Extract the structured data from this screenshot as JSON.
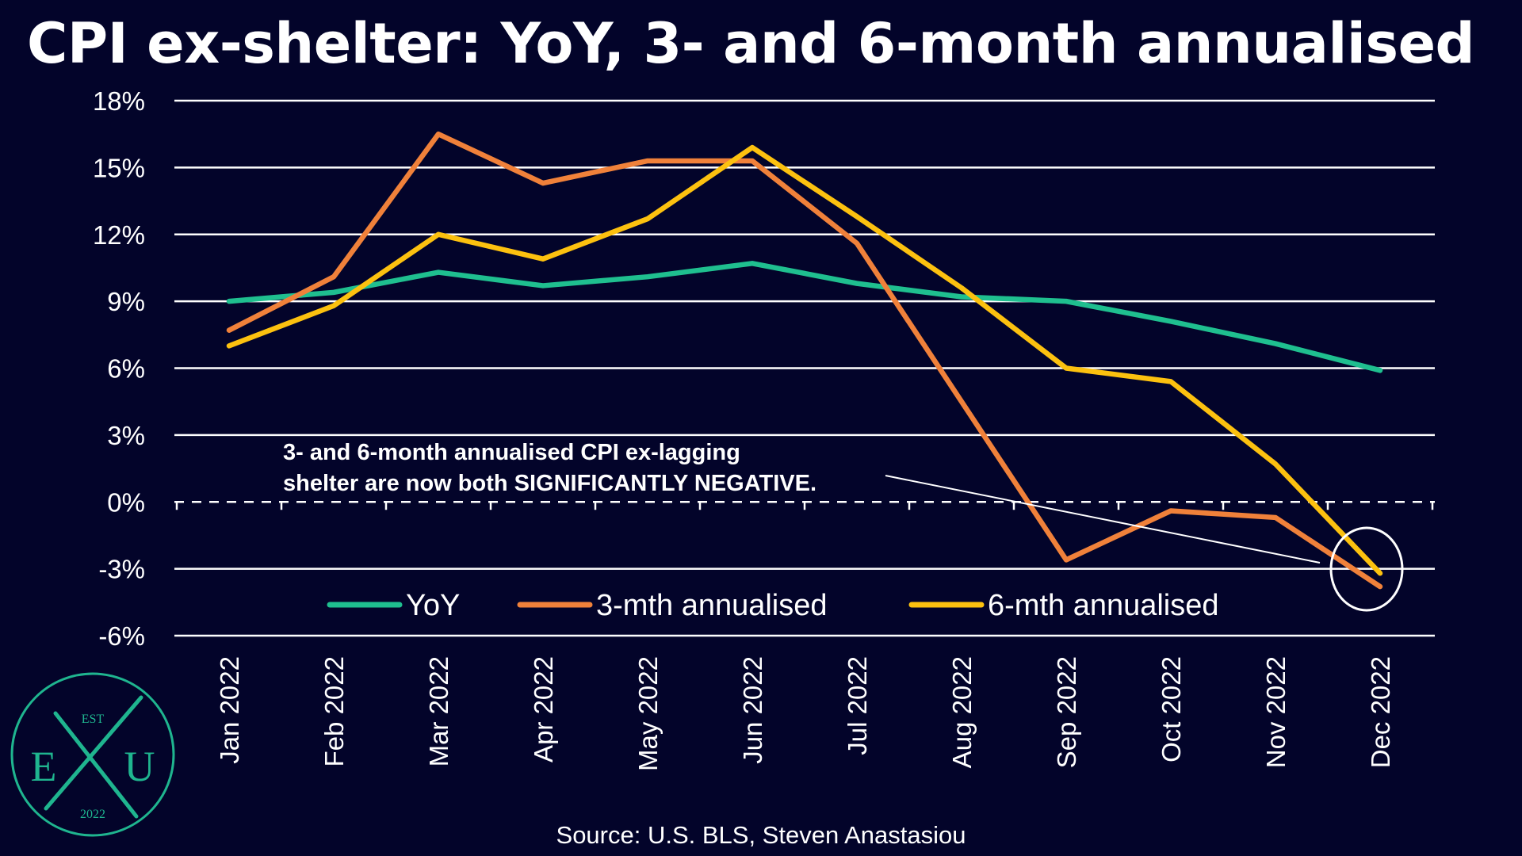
{
  "title": "CPI ex-shelter: YoY, 3- and 6-month annualised",
  "source": "Source: U.S. BLS, Steven Anastasiou",
  "annotation": [
    "3- and 6-month annualised CPI ex-lagging",
    "shelter are now both SIGNIFICANTLY NEGATIVE."
  ],
  "logo": {
    "top": "EST",
    "left": "E",
    "right": "U",
    "bottom": "2022",
    "color": "#1fb58f"
  },
  "colors": {
    "background": "#03042a",
    "grid": "#ffffff"
  },
  "chart_data": {
    "type": "line",
    "title": "CPI ex-shelter: YoY, 3- and 6-month annualised",
    "categories": [
      "Jan 2022",
      "Feb 2022",
      "Mar 2022",
      "Apr 2022",
      "May 2022",
      "Jun 2022",
      "Jul 2022",
      "Aug 2022",
      "Sep 2022",
      "Oct 2022",
      "Nov 2022",
      "Dec 2022"
    ],
    "ylim": [
      -6,
      18
    ],
    "yticks": [
      18,
      15,
      12,
      9,
      6,
      3,
      0,
      -3,
      -6
    ],
    "ytick_labels": [
      "18%",
      "15%",
      "12%",
      "9%",
      "6%",
      "3%",
      "0%",
      "-3%",
      "-6%"
    ],
    "grid": true,
    "legend": "bottom",
    "series": [
      {
        "name": "YoY",
        "color": "#1fbf8f",
        "values": [
          9.0,
          9.4,
          10.3,
          9.7,
          10.1,
          10.7,
          9.8,
          9.2,
          9.0,
          8.1,
          7.1,
          5.9
        ]
      },
      {
        "name": "3-mth annualised",
        "color": "#f0813a",
        "values": [
          7.7,
          10.1,
          16.5,
          14.3,
          15.3,
          15.3,
          11.6,
          4.5,
          -2.6,
          -0.4,
          -0.7,
          -3.8
        ]
      },
      {
        "name": "6-mth annualised",
        "color": "#fcc10f",
        "values": [
          7.0,
          8.8,
          12.0,
          10.9,
          12.7,
          15.9,
          12.8,
          9.6,
          6.0,
          5.4,
          1.7,
          -3.2
        ]
      }
    ]
  }
}
